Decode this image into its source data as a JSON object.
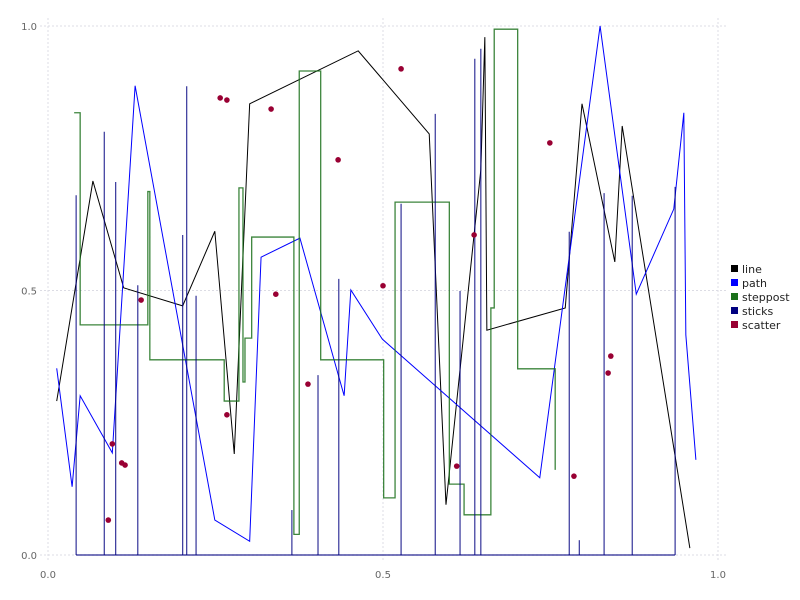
{
  "chart_data": {
    "type": "line",
    "title": "",
    "xlabel": "",
    "ylabel": "",
    "xlim": [
      0,
      1
    ],
    "ylim": [
      0,
      1
    ],
    "grid": true,
    "legend_placement": "right",
    "x_ticks": [
      "0.0",
      "0.5",
      "1.0"
    ],
    "y_ticks": [
      "0.0",
      "0.5",
      "1.0"
    ],
    "x_tick_values": [
      0,
      0.5,
      1
    ],
    "y_tick_values": [
      0,
      0.5,
      1
    ],
    "series": [
      {
        "name": "line",
        "kind": "line",
        "color": "#000000",
        "points": [
          [
            0.013,
            0.291
          ],
          [
            0.067,
            0.707
          ],
          [
            0.113,
            0.505
          ],
          [
            0.201,
            0.471
          ],
          [
            0.249,
            0.612
          ],
          [
            0.278,
            0.191
          ],
          [
            0.301,
            0.853
          ],
          [
            0.463,
            0.953
          ],
          [
            0.569,
            0.796
          ],
          [
            0.594,
            0.095
          ],
          [
            0.646,
            0.728
          ],
          [
            0.652,
            0.979
          ],
          [
            0.655,
            0.425
          ],
          [
            0.772,
            0.467
          ],
          [
            0.797,
            0.853
          ],
          [
            0.846,
            0.554
          ],
          [
            0.857,
            0.811
          ],
          [
            0.958,
            0.013
          ]
        ]
      },
      {
        "name": "path",
        "kind": "path",
        "color": "#0000ff",
        "points": [
          [
            0.013,
            0.353
          ],
          [
            0.036,
            0.129
          ],
          [
            0.048,
            0.301
          ],
          [
            0.096,
            0.193
          ],
          [
            0.13,
            0.887
          ],
          [
            0.249,
            0.066
          ],
          [
            0.301,
            0.026
          ],
          [
            0.318,
            0.563
          ],
          [
            0.376,
            0.599
          ],
          [
            0.442,
            0.301
          ],
          [
            0.452,
            0.501
          ],
          [
            0.499,
            0.408
          ],
          [
            0.734,
            0.146
          ],
          [
            0.824,
            1.0
          ],
          [
            0.878,
            0.493
          ],
          [
            0.934,
            0.654
          ],
          [
            0.949,
            0.836
          ],
          [
            0.952,
            0.416
          ],
          [
            0.967,
            0.18
          ]
        ]
      },
      {
        "name": "steppost",
        "kind": "steppost",
        "color": "#1a701a",
        "points": [
          [
            0.039,
            0.836
          ],
          [
            0.048,
            0.435
          ],
          [
            0.149,
            0.687
          ],
          [
            0.152,
            0.369
          ],
          [
            0.263,
            0.291
          ],
          [
            0.285,
            0.694
          ],
          [
            0.291,
            0.327
          ],
          [
            0.294,
            0.41
          ],
          [
            0.304,
            0.601
          ],
          [
            0.367,
            0.039
          ],
          [
            0.375,
            0.915
          ],
          [
            0.407,
            0.369
          ],
          [
            0.501,
            0.108
          ],
          [
            0.518,
            0.667
          ],
          [
            0.599,
            0.134
          ],
          [
            0.621,
            0.076
          ],
          [
            0.661,
            0.467
          ],
          [
            0.666,
            0.994
          ],
          [
            0.701,
            0.352
          ],
          [
            0.757,
            0.161
          ]
        ]
      },
      {
        "name": "sticks",
        "kind": "sticks",
        "color": "#000080",
        "points": [
          [
            0.042,
            0.68
          ],
          [
            0.084,
            0.8
          ],
          [
            0.101,
            0.705
          ],
          [
            0.134,
            0.51
          ],
          [
            0.201,
            0.605
          ],
          [
            0.207,
            0.886
          ],
          [
            0.221,
            0.49
          ],
          [
            0.364,
            0.085
          ],
          [
            0.403,
            0.34
          ],
          [
            0.434,
            0.522
          ],
          [
            0.527,
            0.664
          ],
          [
            0.578,
            0.834
          ],
          [
            0.615,
            0.499
          ],
          [
            0.637,
            0.938
          ],
          [
            0.646,
            0.957
          ],
          [
            0.778,
            0.611
          ],
          [
            0.793,
            0.028
          ],
          [
            0.83,
            0.684
          ],
          [
            0.872,
            0.679
          ],
          [
            0.936,
            0.696
          ]
        ]
      },
      {
        "name": "scatter",
        "kind": "scatter",
        "color": "#990033",
        "points": [
          [
            0.09,
            0.066
          ],
          [
            0.096,
            0.21
          ],
          [
            0.11,
            0.174
          ],
          [
            0.115,
            0.17
          ],
          [
            0.139,
            0.482
          ],
          [
            0.257,
            0.864
          ],
          [
            0.267,
            0.86
          ],
          [
            0.267,
            0.265
          ],
          [
            0.333,
            0.843
          ],
          [
            0.34,
            0.493
          ],
          [
            0.388,
            0.323
          ],
          [
            0.433,
            0.747
          ],
          [
            0.5,
            0.509
          ],
          [
            0.527,
            0.919
          ],
          [
            0.61,
            0.168
          ],
          [
            0.636,
            0.605
          ],
          [
            0.749,
            0.779
          ],
          [
            0.785,
            0.149
          ],
          [
            0.836,
            0.344
          ],
          [
            0.84,
            0.376
          ]
        ]
      }
    ]
  }
}
